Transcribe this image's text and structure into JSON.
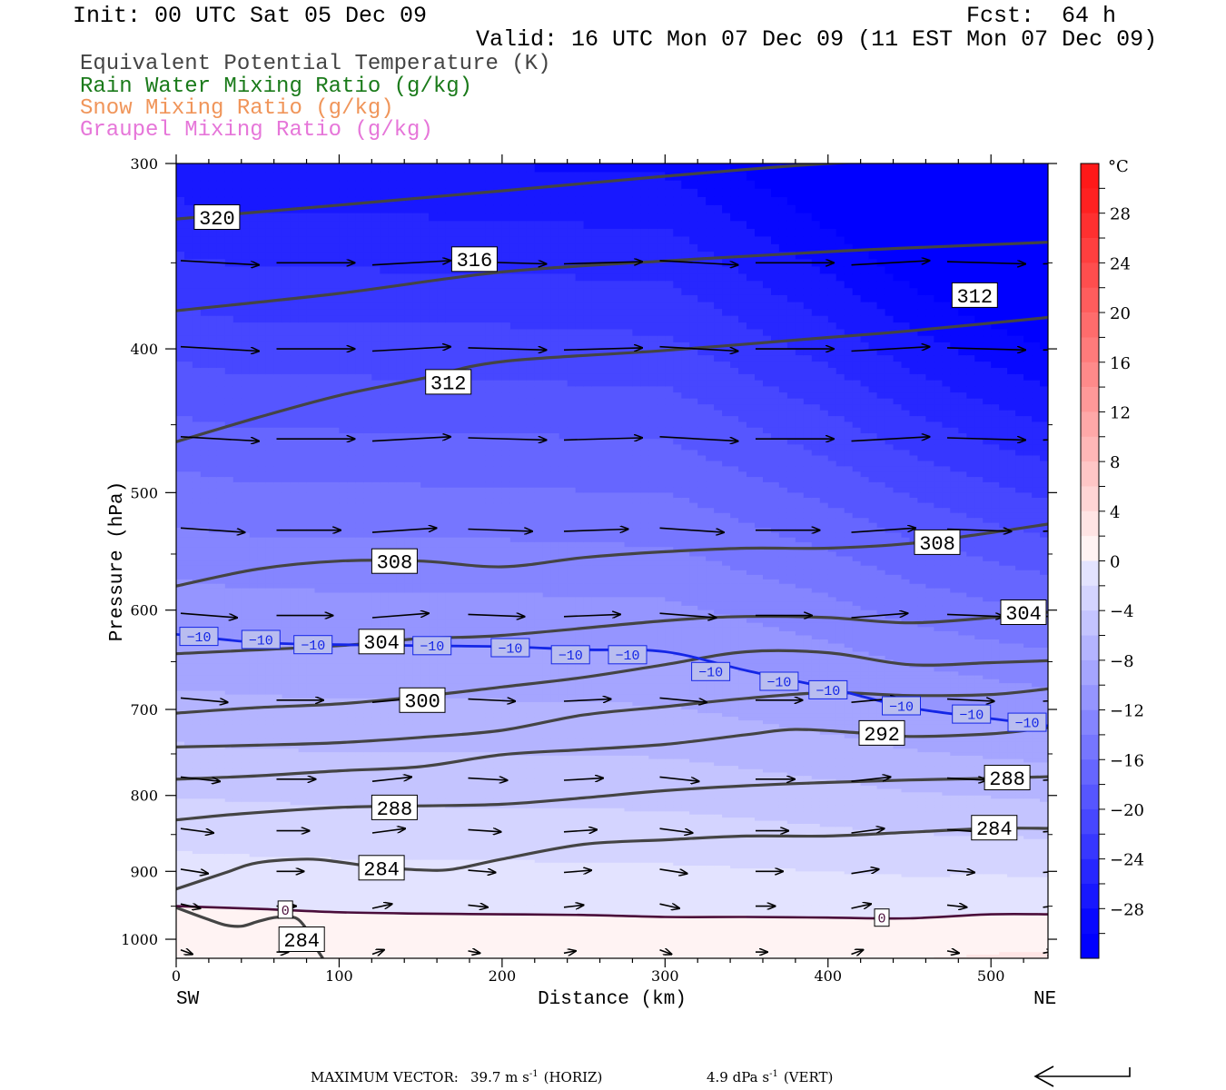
{
  "header": {
    "init": "Init: 00 UTC Sat 05 Dec 09",
    "fcst": "Fcst:  64 h",
    "valid": "Valid: 16 UTC Mon 07 Dec 09 (11 EST Mon 07 Dec 09)"
  },
  "fields": [
    {
      "label": "Equivalent Potential Temperature (K)",
      "color": "#444444"
    },
    {
      "label": "Rain Water Mixing Ratio (g/kg)",
      "color": "#1a7a1a"
    },
    {
      "label": "Snow Mixing Ratio (g/kg)",
      "color": "#f0955a"
    },
    {
      "label": "Graupel Mixing Ratio (g/kg)",
      "color": "#e676d9"
    }
  ],
  "chart_data": {
    "type": "heatmap",
    "xlabel": "Distance (km)",
    "ylabel": "Pressure (hPa)",
    "xlim": [
      0,
      535
    ],
    "ylim": [
      1030,
      300
    ],
    "y_scale": "log",
    "x_ticks": [
      0,
      100,
      200,
      300,
      400,
      500
    ],
    "y_ticks": [
      300,
      400,
      500,
      600,
      700,
      800,
      900,
      1000
    ],
    "x_end_labels": {
      "left": "SW",
      "right": "NE"
    },
    "colorbar": {
      "unit": "°C",
      "ticks": [
        28,
        24,
        20,
        16,
        12,
        8,
        4,
        0,
        -4,
        -8,
        -12,
        -16,
        -20,
        -24,
        -28
      ],
      "range": [
        -32,
        32
      ],
      "step": 2
    },
    "theta_e_contours": [
      {
        "value": 320,
        "points": [
          [
            0,
            327
          ],
          [
            100,
            320
          ],
          [
            200,
            313
          ],
          [
            300,
            306
          ],
          [
            400,
            300
          ],
          [
            460,
            299
          ]
        ]
      },
      {
        "value": 316,
        "points": [
          [
            0,
            377
          ],
          [
            100,
            367
          ],
          [
            200,
            355
          ],
          [
            300,
            349
          ],
          [
            400,
            344
          ],
          [
            450,
            342
          ],
          [
            535,
            339
          ]
        ]
      },
      {
        "value": 312,
        "points": [
          [
            0,
            462
          ],
          [
            50,
            445
          ],
          [
            100,
            430
          ],
          [
            150,
            419
          ],
          [
            200,
            408
          ],
          [
            300,
            401
          ],
          [
            400,
            393
          ],
          [
            450,
            389
          ],
          [
            535,
            381
          ]
        ]
      },
      {
        "value": 308,
        "points": [
          [
            0,
            578
          ],
          [
            50,
            563
          ],
          [
            100,
            556
          ],
          [
            150,
            556
          ],
          [
            200,
            561
          ],
          [
            250,
            553
          ],
          [
            300,
            548
          ],
          [
            350,
            545
          ],
          [
            400,
            545
          ],
          [
            450,
            541
          ],
          [
            500,
            532
          ],
          [
            535,
            525
          ]
        ]
      },
      {
        "value": 304,
        "points": [
          [
            0,
            642
          ],
          [
            100,
            634
          ],
          [
            150,
            627
          ],
          [
            200,
            624
          ],
          [
            300,
            610
          ],
          [
            350,
            606
          ],
          [
            400,
            607
          ],
          [
            450,
            612
          ],
          [
            500,
            607
          ],
          [
            535,
            602
          ]
        ]
      },
      {
        "value": 300,
        "points": [
          [
            0,
            704
          ],
          [
            50,
            698
          ],
          [
            100,
            694
          ],
          [
            150,
            686
          ],
          [
            200,
            676
          ],
          [
            250,
            666
          ],
          [
            300,
            653
          ],
          [
            350,
            640
          ],
          [
            400,
            641
          ],
          [
            450,
            653
          ],
          [
            500,
            651
          ],
          [
            535,
            649
          ]
        ]
      },
      {
        "value": 296,
        "points": [
          [
            0,
            742
          ],
          [
            50,
            740
          ],
          [
            100,
            737
          ],
          [
            150,
            731
          ],
          [
            200,
            723
          ],
          [
            250,
            706
          ],
          [
            300,
            697
          ],
          [
            350,
            688
          ],
          [
            400,
            682
          ],
          [
            450,
            685
          ],
          [
            500,
            684
          ],
          [
            535,
            678
          ]
        ]
      },
      {
        "value": 292,
        "points": [
          [
            0,
            780
          ],
          [
            50,
            776
          ],
          [
            100,
            770
          ],
          [
            150,
            765
          ],
          [
            200,
            751
          ],
          [
            250,
            745
          ],
          [
            300,
            739
          ],
          [
            350,
            728
          ],
          [
            380,
            722
          ],
          [
            420,
            726
          ],
          [
            450,
            730
          ],
          [
            500,
            727
          ],
          [
            535,
            720
          ]
        ]
      },
      {
        "value": 288,
        "points": [
          [
            0,
            831
          ],
          [
            40,
            823
          ],
          [
            100,
            815
          ],
          [
            150,
            813
          ],
          [
            200,
            811
          ],
          [
            250,
            803
          ],
          [
            300,
            794
          ],
          [
            350,
            788
          ],
          [
            400,
            784
          ],
          [
            450,
            781
          ],
          [
            500,
            779
          ],
          [
            535,
            777
          ]
        ]
      },
      {
        "value": 284,
        "points": [
          [
            0,
            925
          ],
          [
            30,
            902
          ],
          [
            50,
            888
          ],
          [
            80,
            883
          ],
          [
            100,
            887
          ],
          [
            120,
            893
          ],
          [
            150,
            898
          ],
          [
            170,
            897
          ],
          [
            200,
            883
          ],
          [
            250,
            863
          ],
          [
            300,
            857
          ],
          [
            350,
            852
          ],
          [
            400,
            852
          ],
          [
            450,
            847
          ],
          [
            500,
            842
          ],
          [
            535,
            842
          ]
        ]
      }
    ],
    "theta_e_lower": {
      "value": 284,
      "points": [
        [
          0,
          952
        ],
        [
          20,
          970
        ],
        [
          30,
          978
        ],
        [
          40,
          980
        ],
        [
          50,
          973
        ],
        [
          60,
          967
        ],
        [
          70,
          966
        ],
        [
          75,
          970
        ],
        [
          80,
          985
        ],
        [
          85,
          1010
        ],
        [
          90,
          1030
        ]
      ]
    },
    "isotherms": [
      {
        "value": -10,
        "points": [
          [
            0,
            623
          ],
          [
            50,
            631
          ],
          [
            100,
            633
          ],
          [
            150,
            634
          ],
          [
            200,
            635
          ],
          [
            250,
            638
          ],
          [
            300,
            640
          ],
          [
            350,
            659
          ],
          [
            400,
            677
          ],
          [
            450,
            698
          ],
          [
            500,
            710
          ],
          [
            535,
            718
          ]
        ]
      },
      {
        "value": 0,
        "points": [
          [
            0,
            950
          ],
          [
            50,
            954
          ],
          [
            100,
            959
          ],
          [
            150,
            961
          ],
          [
            200,
            962
          ],
          [
            250,
            963
          ],
          [
            300,
            966
          ],
          [
            350,
            966
          ],
          [
            400,
            967
          ],
          [
            450,
            968
          ],
          [
            500,
            962
          ],
          [
            535,
            962
          ]
        ]
      }
    ],
    "contour_labels": [
      {
        "text": "320",
        "x": 25,
        "p": 326
      },
      {
        "text": "316",
        "x": 183,
        "p": 348
      },
      {
        "text": "312",
        "x": 490,
        "p": 368
      },
      {
        "text": "312",
        "x": 167,
        "p": 421
      },
      {
        "text": "308",
        "x": 134,
        "p": 556
      },
      {
        "text": "308",
        "x": 467,
        "p": 540
      },
      {
        "text": "304",
        "x": 525,
        "p": 602
      },
      {
        "text": "304",
        "x": 126,
        "p": 630
      },
      {
        "text": "300",
        "x": 151,
        "p": 690
      },
      {
        "text": "292",
        "x": 433,
        "p": 726
      },
      {
        "text": "288",
        "x": 510,
        "p": 778
      },
      {
        "text": "288",
        "x": 134,
        "p": 815
      },
      {
        "text": "284",
        "x": 502,
        "p": 841
      },
      {
        "text": "284",
        "x": 126,
        "p": 895
      },
      {
        "text": "284",
        "x": 77,
        "p": 1000
      },
      {
        "text": "0",
        "x": 67,
        "p": 955
      },
      {
        "text": "0",
        "x": 433,
        "p": 967
      },
      {
        "text": "−10",
        "x": 0,
        "p": 625
      },
      {
        "text": "−10",
        "x": 52,
        "p": 628
      },
      {
        "text": "−10",
        "x": 84,
        "p": 633
      },
      {
        "text": "−10",
        "x": 157,
        "p": 634
      },
      {
        "text": "−10",
        "x": 205,
        "p": 636
      },
      {
        "text": "−10",
        "x": 242,
        "p": 643
      },
      {
        "text": "−10",
        "x": 277,
        "p": 643
      },
      {
        "text": "−10",
        "x": 328,
        "p": 660
      },
      {
        "text": "−10",
        "x": 370,
        "p": 670
      },
      {
        "text": "−10",
        "x": 400,
        "p": 679
      },
      {
        "text": "−10",
        "x": 445,
        "p": 696
      },
      {
        "text": "−10",
        "x": 488,
        "p": 705
      },
      {
        "text": "−10",
        "x": 525,
        "p": 714
      }
    ],
    "wind_rows": [
      {
        "p": 350,
        "len": 1.0
      },
      {
        "p": 400,
        "len": 1.0
      },
      {
        "p": 460,
        "len": 1.0
      },
      {
        "p": 530,
        "len": 0.82
      },
      {
        "p": 605,
        "len": 0.72
      },
      {
        "p": 690,
        "len": 0.6
      },
      {
        "p": 780,
        "len": 0.5
      },
      {
        "p": 845,
        "len": 0.42
      },
      {
        "p": 900,
        "len": 0.35
      },
      {
        "p": 950,
        "len": 0.25
      },
      {
        "p": 1020,
        "len": 0.15
      }
    ],
    "max_vector": {
      "label": "MAXIMUM VECTOR:",
      "horiz": "39.7 m s",
      "horiz_unit": "-1",
      "horiz_tag": "(HORIZ)",
      "vert": "4.9 dPa s",
      "vert_unit": "-1",
      "vert_tag": "(VERT)"
    }
  }
}
